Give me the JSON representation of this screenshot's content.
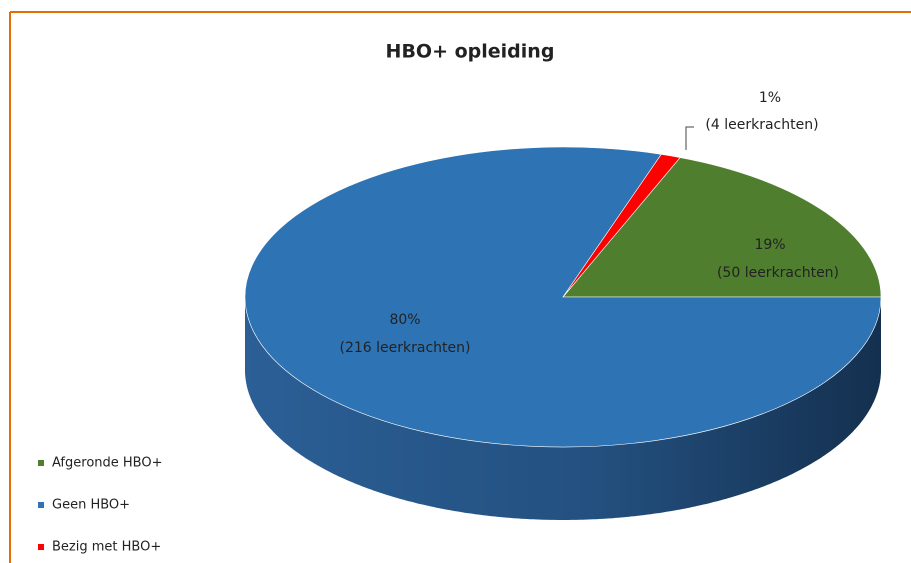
{
  "chart_data": {
    "type": "pie3d",
    "title": "HBO+ opleiding",
    "categories": [
      "Afgeronde HBO+",
      "Geen HBO+",
      "Bezig met HBO+"
    ],
    "values": [
      19,
      80,
      1
    ],
    "value_labels": [
      "19%",
      "80%",
      "1%"
    ],
    "counts": [
      50,
      216,
      4
    ],
    "count_labels": [
      "(50 leerkrachten)",
      "(216 leerkrachten)",
      "(4 leerkrachten)"
    ],
    "colors": [
      "#4f7f2e",
      "#2e74b5",
      "#ff0000"
    ],
    "legend": "bottom-left"
  }
}
